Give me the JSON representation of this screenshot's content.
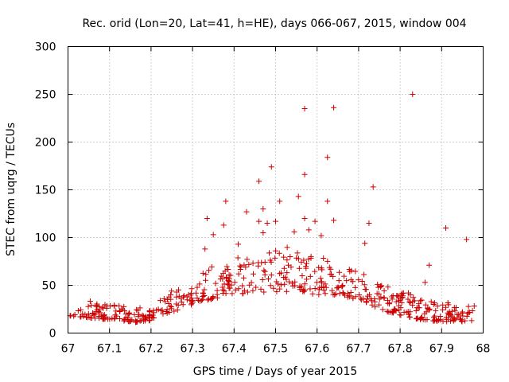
{
  "chart_data": {
    "type": "scatter",
    "title": "Rec. orid (Lon=20, Lat=41, h=HE), days 066-067, 2015, window 004",
    "xlabel": "GPS time / Days of year 2015",
    "ylabel": "STEC from uqrg / TECUs",
    "xlim": [
      67,
      68
    ],
    "ylim": [
      0,
      300
    ],
    "xticks": [
      "67",
      "67.1",
      "67.2",
      "67.3",
      "67.4",
      "67.5",
      "67.6",
      "67.7",
      "67.8",
      "67.9",
      "68"
    ],
    "yticks": [
      "0",
      "50",
      "100",
      "150",
      "200",
      "250",
      "300"
    ],
    "grid": true,
    "marker": "+",
    "series_color": "#cc0000",
    "outliers": [
      {
        "x": 67.57,
        "y": 235
      },
      {
        "x": 67.64,
        "y": 236
      },
      {
        "x": 67.83,
        "y": 250
      },
      {
        "x": 67.49,
        "y": 174
      },
      {
        "x": 67.57,
        "y": 166
      },
      {
        "x": 67.625,
        "y": 184
      },
      {
        "x": 67.46,
        "y": 159
      },
      {
        "x": 67.555,
        "y": 143
      },
      {
        "x": 67.735,
        "y": 153
      },
      {
        "x": 67.51,
        "y": 138
      },
      {
        "x": 67.625,
        "y": 138
      },
      {
        "x": 67.38,
        "y": 138
      },
      {
        "x": 67.47,
        "y": 130
      },
      {
        "x": 67.43,
        "y": 127
      },
      {
        "x": 67.335,
        "y": 120
      },
      {
        "x": 67.57,
        "y": 120
      },
      {
        "x": 67.64,
        "y": 118
      },
      {
        "x": 67.46,
        "y": 117
      },
      {
        "x": 67.5,
        "y": 117
      },
      {
        "x": 67.595,
        "y": 117
      },
      {
        "x": 67.725,
        "y": 115
      },
      {
        "x": 67.48,
        "y": 115
      },
      {
        "x": 67.375,
        "y": 113
      },
      {
        "x": 67.91,
        "y": 110
      },
      {
        "x": 67.35,
        "y": 103
      },
      {
        "x": 67.47,
        "y": 105
      },
      {
        "x": 67.545,
        "y": 106
      },
      {
        "x": 67.58,
        "y": 108
      },
      {
        "x": 67.61,
        "y": 102
      },
      {
        "x": 67.96,
        "y": 98
      },
      {
        "x": 67.715,
        "y": 94
      },
      {
        "x": 67.41,
        "y": 93
      },
      {
        "x": 67.33,
        "y": 88
      },
      {
        "x": 67.87,
        "y": 71
      },
      {
        "x": 67.86,
        "y": 53
      },
      {
        "x": 67.82,
        "y": 42
      }
    ],
    "bands": {
      "floor": [
        [
          67,
          17
        ],
        [
          67.05,
          16
        ],
        [
          67.1,
          14
        ],
        [
          67.15,
          12
        ],
        [
          67.18,
          10
        ],
        [
          67.2,
          14
        ],
        [
          67.25,
          22
        ],
        [
          67.3,
          30
        ],
        [
          67.35,
          36
        ],
        [
          67.4,
          40
        ],
        [
          67.45,
          42
        ],
        [
          67.5,
          43
        ],
        [
          67.55,
          44
        ],
        [
          67.6,
          40
        ],
        [
          67.65,
          40
        ],
        [
          67.7,
          35
        ],
        [
          67.75,
          25
        ],
        [
          67.8,
          18
        ],
        [
          67.85,
          14
        ],
        [
          67.9,
          12
        ],
        [
          67.95,
          12
        ],
        [
          68,
          12
        ]
      ],
      "top": [
        [
          67,
          23
        ],
        [
          67.05,
          34
        ],
        [
          67.1,
          30
        ],
        [
          67.15,
          27
        ],
        [
          67.2,
          28
        ],
        [
          67.25,
          46
        ],
        [
          67.3,
          55
        ],
        [
          67.35,
          72
        ],
        [
          67.4,
          80
        ],
        [
          67.45,
          85
        ],
        [
          67.5,
          88
        ],
        [
          67.55,
          92
        ],
        [
          67.6,
          85
        ],
        [
          67.65,
          70
        ],
        [
          67.7,
          65
        ],
        [
          67.75,
          52
        ],
        [
          67.8,
          45
        ],
        [
          67.85,
          35
        ],
        [
          67.9,
          32
        ],
        [
          67.95,
          32
        ],
        [
          68,
          37
        ]
      ],
      "seed": 20150307,
      "count": 560
    }
  }
}
